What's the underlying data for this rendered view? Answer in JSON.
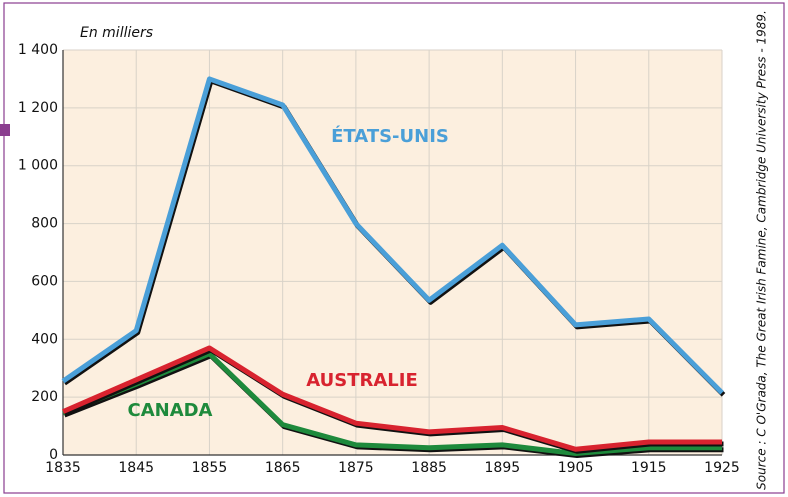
{
  "chart_data": {
    "type": "line",
    "y_label": "En milliers",
    "source": "Source : C O'Grada, The Great Irish Famine, Cambridge University Press - 1989.",
    "x": [
      1835,
      1845,
      1855,
      1865,
      1875,
      1885,
      1895,
      1905,
      1915,
      1925
    ],
    "xlim": [
      1835,
      1925
    ],
    "xticks": [
      1835,
      1845,
      1855,
      1865,
      1875,
      1885,
      1895,
      1905,
      1915,
      1925
    ],
    "ylim": [
      0,
      1400
    ],
    "yticks": [
      0,
      {
        "value": 200,
        "label": "200"
      },
      400,
      600,
      800,
      {
        "value": 1000,
        "label": "1 000"
      },
      {
        "value": 1200,
        "label": "1 200"
      },
      {
        "value": 1400,
        "label": "1 400"
      }
    ],
    "grid": true,
    "series": [
      {
        "name": "ÉTATS-UNIS",
        "color": "#4a9fd8",
        "values": [
          255,
          430,
          1300,
          1210,
          800,
          535,
          725,
          450,
          470,
          215
        ]
      },
      {
        "name": "AUSTRALIE",
        "color": "#d8232f",
        "values": [
          150,
          260,
          370,
          210,
          110,
          80,
          95,
          20,
          45,
          45
        ]
      },
      {
        "name": "CANADA",
        "color": "#1e8a3c",
        "values": [
          145,
          245,
          350,
          105,
          35,
          25,
          35,
          5,
          25,
          25
        ]
      }
    ]
  }
}
